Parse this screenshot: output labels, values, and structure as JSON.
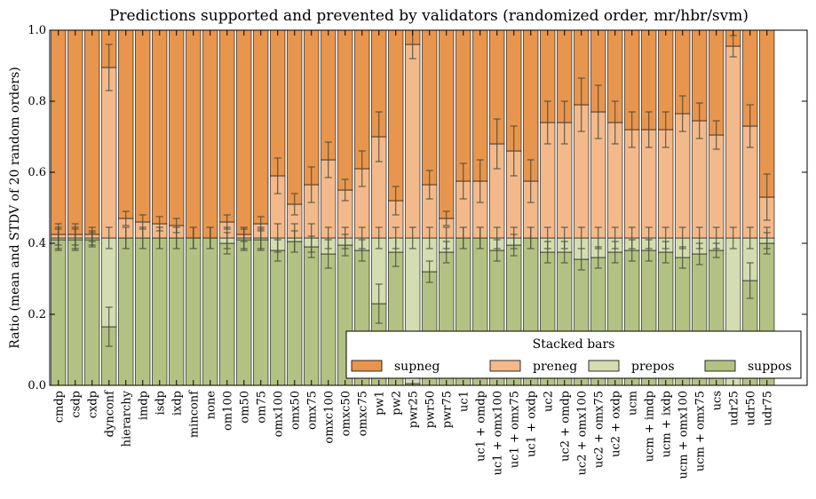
{
  "chart_data": {
    "type": "bar",
    "stacked": true,
    "title": "Predictions supported and prevented by validators (randomized order, mr/hbr/svm)",
    "ylabel": "Ratio (mean and STDV of 20 random orders)",
    "xlabel": "",
    "ylim": [
      0.0,
      1.0
    ],
    "yticks": [
      "0.0",
      "0.2",
      "0.4",
      "0.6",
      "0.8",
      "1.0"
    ],
    "grid": false,
    "legend": {
      "title": "Stacked bars",
      "placement": "lower-right",
      "entries": [
        "supneg",
        "preneg",
        "prepos",
        "suppos"
      ]
    },
    "colors": {
      "supneg": "#e8954e",
      "preneg": "#f3b98b",
      "prepos": "#d4dcb2",
      "suppos": "#b3c283",
      "errorbar": "#4a4a35",
      "edge": "#000000"
    },
    "categories": [
      "cmdp",
      "csdp",
      "cxdp",
      "dynconf",
      "hierarchy",
      "imdp",
      "isdp",
      "ixdp",
      "minconf",
      "none",
      "om100",
      "om50",
      "om75",
      "omx100",
      "omx50",
      "omx75",
      "omxc100",
      "omxc50",
      "omxc75",
      "pw1",
      "pw2",
      "pwr25",
      "pwr50",
      "pwr75",
      "uc1",
      "uc1 + omdp",
      "uc1 + omx100",
      "uc1 + omx75",
      "uc1 + oxdp",
      "uc2",
      "uc2 + omdp",
      "uc2 + omx100",
      "uc2 + omx75",
      "uc2 + oxdp",
      "ucm",
      "ucm + imdp",
      "ucm + ixdp",
      "ucm + omx100",
      "ucm + omx75",
      "ucs",
      "udr25",
      "udr50",
      "udr75"
    ],
    "series": [
      {
        "name": "suppos",
        "values": [
          0.41,
          0.41,
          0.41,
          0.165,
          0.415,
          0.415,
          0.415,
          0.415,
          0.415,
          0.415,
          0.4,
          0.41,
          0.41,
          0.38,
          0.405,
          0.39,
          0.37,
          0.395,
          0.38,
          0.23,
          0.375,
          0.005,
          0.32,
          0.375,
          0.415,
          0.415,
          0.38,
          0.395,
          0.415,
          0.375,
          0.375,
          0.355,
          0.36,
          0.375,
          0.38,
          0.38,
          0.375,
          0.36,
          0.37,
          0.38,
          0.0,
          0.295,
          0.4
        ],
        "errors": [
          0.03,
          0.03,
          0.02,
          0.055,
          0.03,
          0.03,
          0.03,
          0.03,
          0.03,
          0.03,
          0.03,
          0.03,
          0.03,
          0.03,
          0.03,
          0.03,
          0.04,
          0.03,
          0.03,
          0.055,
          0.04,
          0.0,
          0.03,
          0.03,
          0.03,
          0.03,
          0.03,
          0.03,
          0.03,
          0.03,
          0.03,
          0.03,
          0.03,
          0.03,
          0.03,
          0.03,
          0.03,
          0.03,
          0.03,
          0.02,
          0.0,
          0.05,
          0.03
        ]
      },
      {
        "name": "prepos",
        "values": [
          0.005,
          0.005,
          0.005,
          0.25,
          0.0,
          0.0,
          0.0,
          0.0,
          0.0,
          0.0,
          0.015,
          0.005,
          0.005,
          0.035,
          0.01,
          0.025,
          0.045,
          0.02,
          0.035,
          0.185,
          0.04,
          0.41,
          0.095,
          0.04,
          0.0,
          0.0,
          0.035,
          0.02,
          0.0,
          0.04,
          0.04,
          0.06,
          0.055,
          0.04,
          0.035,
          0.035,
          0.04,
          0.055,
          0.045,
          0.035,
          0.415,
          0.12,
          0.015
        ],
        "errors": [
          0.03,
          0.03,
          0.02,
          0.03,
          0.03,
          0.03,
          0.03,
          0.03,
          0.03,
          0.03,
          0.03,
          0.03,
          0.03,
          0.04,
          0.04,
          0.04,
          0.03,
          0.03,
          0.03,
          0.03,
          0.03,
          0.03,
          0.03,
          0.03,
          0.03,
          0.03,
          0.03,
          0.03,
          0.03,
          0.03,
          0.03,
          0.03,
          0.03,
          0.03,
          0.03,
          0.03,
          0.03,
          0.03,
          0.03,
          0.03,
          0.03,
          0.03,
          0.03
        ]
      },
      {
        "name": "preneg",
        "values": [
          0.01,
          0.01,
          0.01,
          0.48,
          0.055,
          0.045,
          0.04,
          0.035,
          0.0,
          0.0,
          0.045,
          0.01,
          0.04,
          0.175,
          0.095,
          0.15,
          0.22,
          0.135,
          0.195,
          0.285,
          0.105,
          0.545,
          0.15,
          0.055,
          0.16,
          0.16,
          0.265,
          0.245,
          0.16,
          0.325,
          0.325,
          0.375,
          0.355,
          0.325,
          0.305,
          0.305,
          0.305,
          0.35,
          0.33,
          0.29,
          0.54,
          0.315,
          0.115
        ],
        "errors": [
          0.03,
          0.03,
          0.02,
          0.065,
          0.02,
          0.02,
          0.02,
          0.02,
          0.03,
          0.03,
          0.02,
          0.02,
          0.02,
          0.05,
          0.03,
          0.05,
          0.05,
          0.03,
          0.05,
          0.07,
          0.04,
          0.04,
          0.04,
          0.02,
          0.05,
          0.06,
          0.07,
          0.07,
          0.06,
          0.06,
          0.06,
          0.075,
          0.075,
          0.06,
          0.05,
          0.05,
          0.05,
          0.05,
          0.05,
          0.04,
          0.03,
          0.06,
          0.065
        ]
      },
      {
        "name": "supneg",
        "values": [
          0.575,
          0.575,
          0.575,
          0.105,
          0.53,
          0.54,
          0.545,
          0.55,
          0.585,
          0.585,
          0.54,
          0.575,
          0.545,
          0.41,
          0.49,
          0.435,
          0.365,
          0.45,
          0.39,
          0.3,
          0.48,
          0.04,
          0.435,
          0.53,
          0.425,
          0.425,
          0.32,
          0.34,
          0.425,
          0.26,
          0.26,
          0.21,
          0.23,
          0.26,
          0.28,
          0.28,
          0.28,
          0.235,
          0.255,
          0.295,
          0.045,
          0.27,
          0.47
        ]
      }
    ]
  }
}
